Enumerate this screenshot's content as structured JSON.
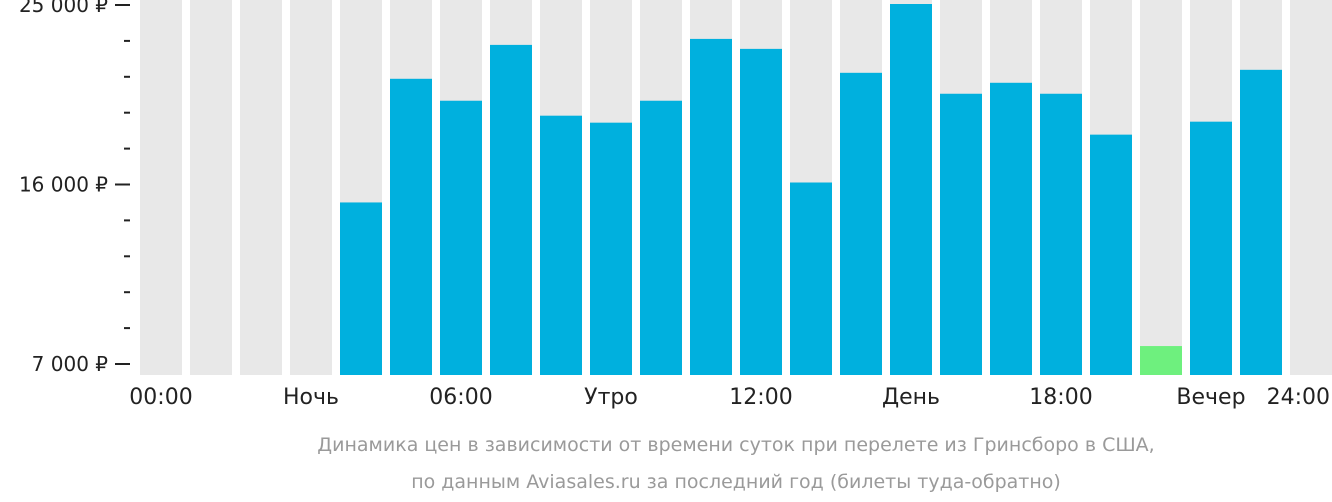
{
  "chart_data": {
    "type": "bar",
    "categories": [
      "00",
      "01",
      "02",
      "03",
      "04",
      "05",
      "06",
      "07",
      "08",
      "09",
      "10",
      "11",
      "12",
      "13",
      "14",
      "15",
      "16",
      "17",
      "18",
      "19",
      "20",
      "21",
      "22",
      "23"
    ],
    "values": [
      null,
      null,
      null,
      null,
      15100,
      21300,
      20200,
      23000,
      19450,
      19100,
      20200,
      23300,
      22800,
      16100,
      21600,
      25050,
      20550,
      21100,
      20550,
      18500,
      7900,
      19150,
      21750,
      null
    ],
    "highlight_index": 20,
    "x_tick_labels": [
      "00:00",
      "Ночь",
      "06:00",
      "Утро",
      "12:00",
      "День",
      "18:00",
      "Вечер",
      "24:00"
    ],
    "y_ticks": [
      "7 000 ₽",
      "16 000 ₽",
      "25 000 ₽"
    ],
    "y_tick_values": [
      7000,
      16000,
      25000
    ],
    "ylim": [
      7000,
      25000
    ],
    "minor_ticks_per_interval": 4,
    "colors": {
      "bar": "#00b0de",
      "highlight": "#6ef07e",
      "background_column": "#e8e8e8",
      "axis_text": "#222222",
      "caption": "#9a9a9a"
    },
    "caption_lines": [
      "Динамика цен в зависимости от времени суток при перелете из Гринсборо в США,",
      "по данным Aviasales.ru за последний год (билеты туда-обратно)"
    ]
  }
}
